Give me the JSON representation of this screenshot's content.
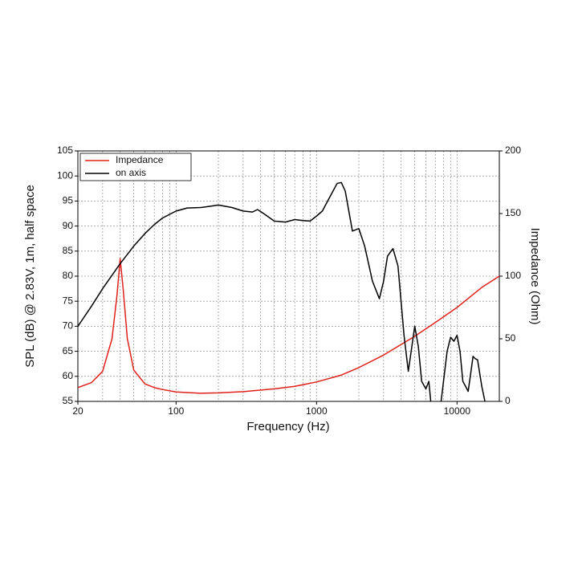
{
  "chart_data": {
    "type": "line",
    "xlabel": "Frequency (Hz)",
    "ylabel": "SPL (dB) @ 2.83V, 1m, half space",
    "y2label": "Impedance (Ohm)",
    "xscale": "log",
    "xlim": [
      20,
      20000
    ],
    "xticks": [
      20,
      100,
      1000,
      10000
    ],
    "xgrid": [
      30,
      40,
      50,
      60,
      70,
      80,
      90,
      200,
      300,
      400,
      500,
      600,
      700,
      800,
      900,
      2000,
      3000,
      4000,
      5000,
      6000,
      7000,
      8000,
      9000
    ],
    "ylim": [
      55,
      105
    ],
    "yticks": [
      55,
      60,
      65,
      70,
      75,
      80,
      85,
      90,
      95,
      100,
      105
    ],
    "y2lim": [
      0,
      200
    ],
    "y2ticks": [
      0,
      50,
      100,
      150,
      200
    ],
    "grid": true,
    "legend": "upper left",
    "series": [
      {
        "name": "Impedance",
        "color": "#e0201b",
        "axis": "y2",
        "x": [
          20,
          25,
          30,
          35,
          38,
          40,
          42,
          45,
          50,
          60,
          70,
          80,
          100,
          150,
          200,
          300,
          500,
          700,
          1000,
          1500,
          2000,
          3000,
          5000,
          7000,
          10000,
          15000,
          20000
        ],
        "values": [
          11,
          15,
          24,
          50,
          85,
          114,
          90,
          50,
          25,
          14,
          11,
          9.5,
          7.5,
          6.5,
          6.8,
          7.8,
          10,
          12,
          15.5,
          21,
          27,
          37,
          52,
          63,
          75,
          91,
          100
        ]
      },
      {
        "name": "on axis",
        "color": "#000000",
        "x": [
          20,
          25,
          30,
          40,
          50,
          60,
          70,
          80,
          100,
          120,
          150,
          180,
          200,
          250,
          300,
          350,
          380,
          420,
          500,
          600,
          700,
          800,
          900,
          1000,
          1100,
          1200,
          1400,
          1500,
          1600,
          1800,
          2000,
          2200,
          2500,
          2800,
          3000,
          3200,
          3500,
          3800,
          4200,
          4500,
          5000,
          5300,
          5600,
          6000,
          6300,
          6500,
          7000,
          7700,
          8500,
          9000,
          9500,
          10000,
          10500,
          11000,
          11500,
          12000,
          12500,
          13000,
          13500,
          14000,
          15000,
          15800
        ],
        "values": [
          70,
          74,
          77.5,
          82.5,
          86,
          88.5,
          90.3,
          91.6,
          93,
          93.6,
          93.7,
          94,
          94.2,
          93.7,
          93,
          92.8,
          93.3,
          92.5,
          91,
          90.8,
          91.3,
          91.1,
          91,
          92,
          93,
          95,
          98.5,
          98.7,
          97,
          89,
          89.5,
          86,
          79,
          75.5,
          79,
          84,
          85.5,
          82,
          68,
          61,
          70,
          66,
          59,
          57.5,
          59,
          55,
          null,
          55,
          65,
          67.8,
          67,
          68.2,
          65,
          59,
          58,
          57,
          60.5,
          64,
          63.5,
          63.3,
          58,
          55
        ]
      }
    ]
  }
}
